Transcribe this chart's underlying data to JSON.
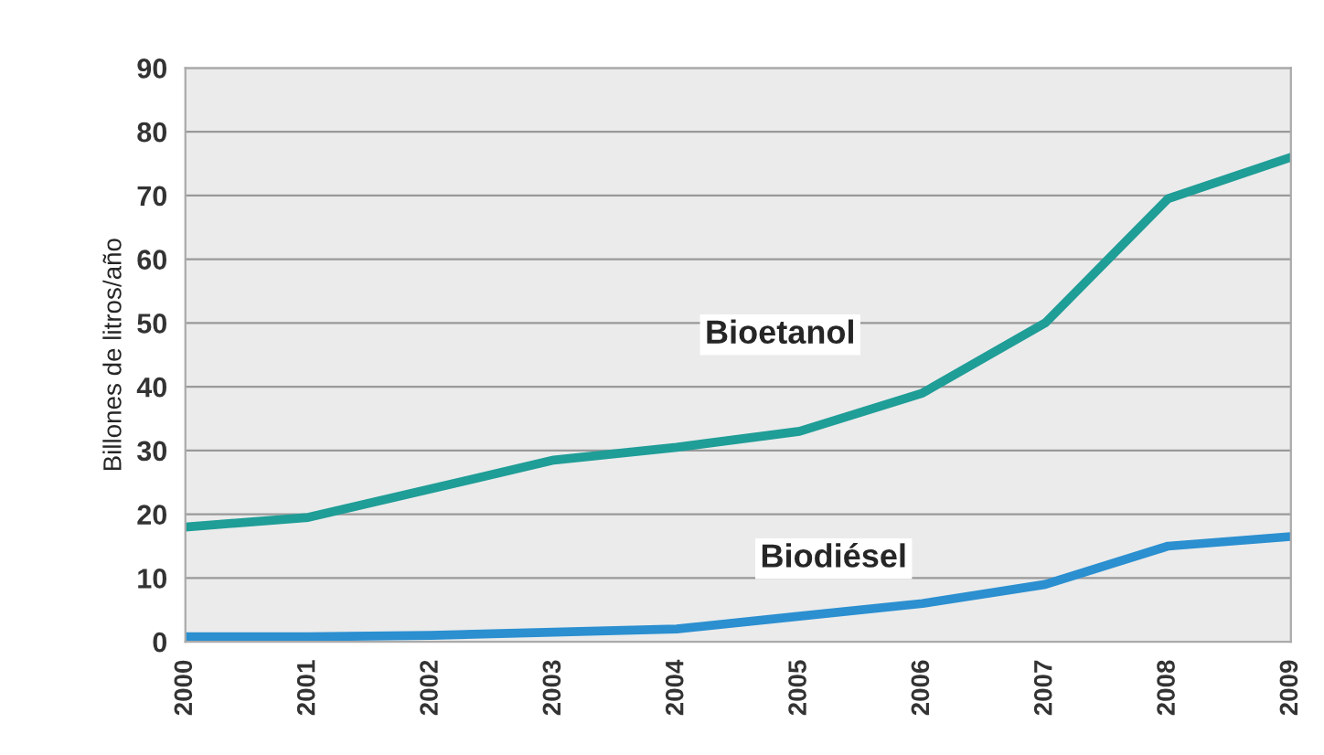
{
  "chart_data": {
    "type": "line",
    "ylabel": "Billones de litros/año",
    "categories": [
      "2000",
      "2001",
      "2002",
      "2003",
      "2004",
      "2005",
      "2006",
      "2007",
      "2008",
      "2009"
    ],
    "series": [
      {
        "name": "Bioetanol",
        "color": "#1f9d97",
        "values": [
          18,
          19.5,
          24,
          28.5,
          30.5,
          33,
          39,
          50,
          69.5,
          76
        ]
      },
      {
        "name": "Biodiésel",
        "color": "#2b8fd0",
        "values": [
          0.8,
          0.8,
          1,
          1.5,
          2,
          4,
          6,
          9,
          15,
          16.5
        ]
      }
    ],
    "ylim": [
      0,
      90
    ],
    "yticks": [
      0,
      10,
      20,
      30,
      40,
      50,
      60,
      70,
      80,
      90
    ],
    "grid": "y",
    "legend": false,
    "marker": "none",
    "line_style": "solid"
  }
}
